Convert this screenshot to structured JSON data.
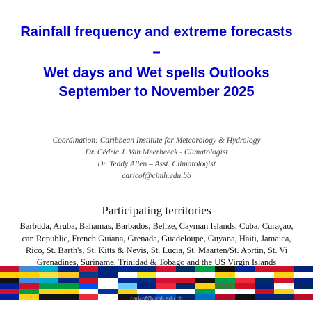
{
  "title": {
    "line1": "Rainfall frequency and extreme forecasts",
    "line2": "–",
    "line3": "Wet days and Wet spells Outlooks",
    "line4": "September to November 2025"
  },
  "coordination": {
    "line1": "Coordination: Caribbean Institute for Meteorology & Hydrology",
    "line2": "Dr. Cédric J. Van Meerbeeck - Climatologist",
    "line3": "Dr. Teddy Allen – Asst. Climatologist",
    "line4": "caricof@cimh.edu.bb"
  },
  "participating": {
    "heading": "Participating territories",
    "line1": "Barbuda, Aruba, Bahamas, Barbados, Belize, Cayman Islands, Cuba, Curaçao,",
    "line2": "can Republic, French Guiana, Grenada, Guadeloupe, Guyana, Haiti, Jamaica,",
    "line3": "Rico, St. Barth's, St. Kitts & Nevis, St. Lucia, St. Maarten/St. Aprtin, St. Vi",
    "line4": "Grenadines, Suriname, Trinidad & Tobago and the US Virgin Islands"
  },
  "footer": {
    "email": "caricof@cimh.edu.bb"
  },
  "flags": [
    {
      "name": "flag-1",
      "colors": [
        "#c8102e",
        "#ffd100",
        "#111111"
      ]
    },
    {
      "name": "flag-2",
      "colors": [
        "#4189dd",
        "#ffd100",
        "#4189dd"
      ]
    },
    {
      "name": "flag-3",
      "colors": [
        "#00abc9",
        "#fae042",
        "#00abc9"
      ]
    },
    {
      "name": "flag-4",
      "colors": [
        "#00267f",
        "#ffc726",
        "#00267f"
      ]
    },
    {
      "name": "flag-5",
      "colors": [
        "#ce1126",
        "#003f87",
        "#ce1126"
      ]
    },
    {
      "name": "flag-6",
      "colors": [
        "#00247d",
        "#00247d",
        "#ffffff"
      ]
    },
    {
      "name": "flag-7",
      "colors": [
        "#002a8f",
        "#ffffff",
        "#002a8f"
      ]
    },
    {
      "name": "flag-8",
      "colors": [
        "#002b7f",
        "#f9e814",
        "#002b7f"
      ]
    },
    {
      "name": "flag-9",
      "colors": [
        "#d21034",
        "#ffffff",
        "#d21034"
      ]
    },
    {
      "name": "flag-10",
      "colors": [
        "#002d62",
        "#ffffff",
        "#ce1126"
      ]
    },
    {
      "name": "flag-11",
      "colors": [
        "#009e49",
        "#ffffff",
        "#111111"
      ]
    },
    {
      "name": "flag-12",
      "colors": [
        "#111111",
        "#fcd116",
        "#009e49"
      ]
    },
    {
      "name": "flag-13",
      "colors": [
        "#002395",
        "#ffffff",
        "#ed2939"
      ]
    },
    {
      "name": "flag-14",
      "colors": [
        "#ce1126",
        "#ffffff",
        "#002d62"
      ]
    },
    {
      "name": "flag-15",
      "colors": [
        "#ce1126",
        "#fcd116",
        "#ce1126"
      ]
    },
    {
      "name": "flag-16",
      "colors": [
        "#00247d",
        "#ffffff",
        "#00247d"
      ]
    }
  ],
  "flags2": [
    {
      "name": "flag-17",
      "colors": [
        "#00209f",
        "#d21034",
        "#00209f"
      ]
    },
    {
      "name": "flag-18",
      "colors": [
        "#ce1126",
        "#009e49",
        "#fcd116"
      ]
    },
    {
      "name": "flag-19",
      "colors": [
        "#009e49",
        "#fcd116",
        "#111111"
      ]
    },
    {
      "name": "flag-20",
      "colors": [
        "#009b3a",
        "#fed100",
        "#111111"
      ]
    },
    {
      "name": "flag-21",
      "colors": [
        "#0050f0",
        "#ffffff",
        "#ed2939"
      ]
    },
    {
      "name": "flag-22",
      "colors": [
        "#ffffff",
        "#0033a0",
        "#ffffff"
      ]
    },
    {
      "name": "flag-23",
      "colors": [
        "#66ccff",
        "#fcd116",
        "#111111"
      ]
    },
    {
      "name": "flag-24",
      "colors": [
        "#00247d",
        "#ffffff",
        "#00247d"
      ]
    },
    {
      "name": "flag-25",
      "colors": [
        "#ed2939",
        "#ffffff",
        "#0047ab"
      ]
    },
    {
      "name": "flag-26",
      "colors": [
        "#002868",
        "#ffffff",
        "#002868"
      ]
    },
    {
      "name": "flag-27",
      "colors": [
        "#fcd116",
        "#009e60",
        "#0072c6"
      ]
    },
    {
      "name": "flag-28",
      "colors": [
        "#377e3f",
        "#ffffff",
        "#b40a2d"
      ]
    },
    {
      "name": "flag-29",
      "colors": [
        "#ce1126",
        "#ffffff",
        "#111111"
      ]
    },
    {
      "name": "flag-30",
      "colors": [
        "#00247d",
        "#ce1126",
        "#00247d"
      ]
    },
    {
      "name": "flag-31",
      "colors": [
        "#ffffff",
        "#fcd116",
        "#002868"
      ]
    },
    {
      "name": "flag-32",
      "colors": [
        "#002868",
        "#ffffff",
        "#bf0a30"
      ]
    }
  ]
}
